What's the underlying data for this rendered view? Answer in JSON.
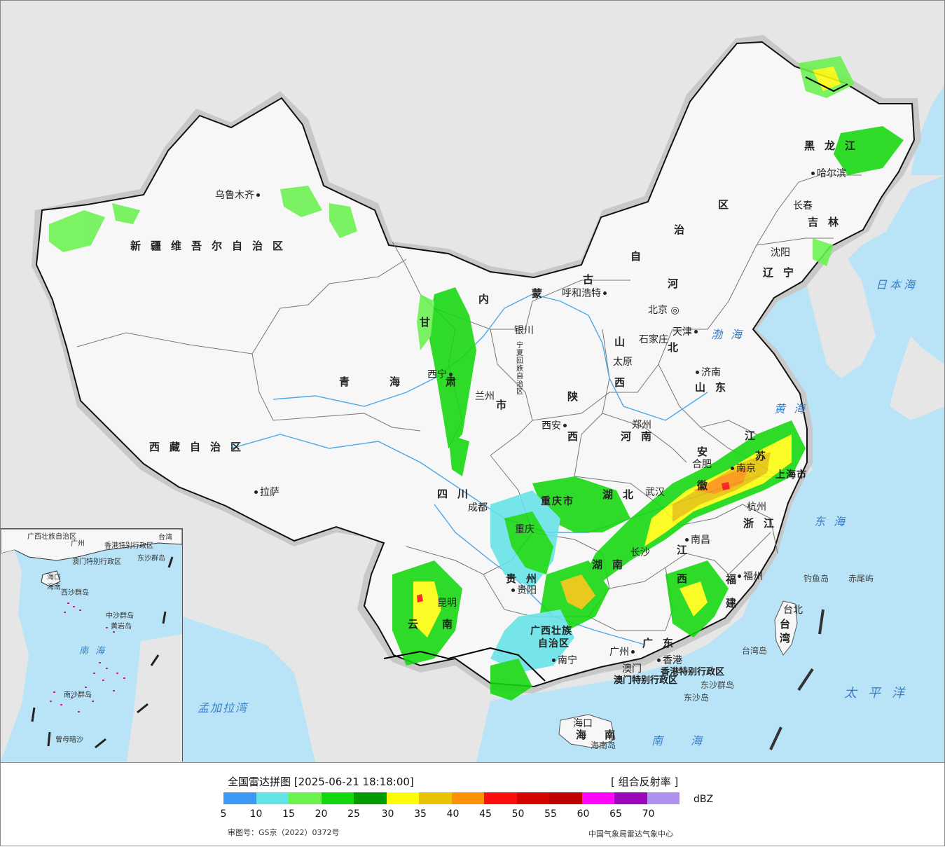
{
  "map": {
    "provinces": [
      {
        "id": "xinjiang",
        "text": "新疆维吾尔自治区"
      },
      {
        "id": "xizang",
        "text": "西藏自治区"
      },
      {
        "id": "qinghai-1",
        "text": "青"
      },
      {
        "id": "qinghai-2",
        "text": "海"
      },
      {
        "id": "gansu-1",
        "text": "甘"
      },
      {
        "id": "gansu-2",
        "text": "肃"
      },
      {
        "id": "neimenggu-1",
        "text": "内"
      },
      {
        "id": "neimenggu-2",
        "text": "蒙"
      },
      {
        "id": "neimenggu-3",
        "text": "古"
      },
      {
        "id": "neimenggu-4",
        "text": "自"
      },
      {
        "id": "neimenggu-5",
        "text": "治"
      },
      {
        "id": "neimenggu-6",
        "text": "区"
      },
      {
        "id": "heilongjiang",
        "text": "黑龙江"
      },
      {
        "id": "jilin",
        "text": "吉林"
      },
      {
        "id": "liaoning",
        "text": "辽宁"
      },
      {
        "id": "hebei-1",
        "text": "河"
      },
      {
        "id": "hebei-2",
        "text": "北"
      },
      {
        "id": "shanxi-1",
        "text": "山"
      },
      {
        "id": "shanxi-2",
        "text": "西"
      },
      {
        "id": "shandong",
        "text": "山东"
      },
      {
        "id": "henan",
        "text": "河南"
      },
      {
        "id": "shaanxi-1",
        "text": "陕"
      },
      {
        "id": "shaanxi-2",
        "text": "西"
      },
      {
        "id": "sichuan",
        "text": "四川"
      },
      {
        "id": "chongqing",
        "text": "重庆市"
      },
      {
        "id": "hubei",
        "text": "湖北"
      },
      {
        "id": "hunan",
        "text": "湖南"
      },
      {
        "id": "anhui-1",
        "text": "安"
      },
      {
        "id": "anhui-2",
        "text": "徽"
      },
      {
        "id": "jiangsu-1",
        "text": "江"
      },
      {
        "id": "jiangsu-2",
        "text": "苏"
      },
      {
        "id": "shanghai",
        "text": "上海市"
      },
      {
        "id": "zhejiang",
        "text": "浙江"
      },
      {
        "id": "jiangxi-1",
        "text": "江"
      },
      {
        "id": "jiangxi-2",
        "text": "西"
      },
      {
        "id": "fujian-1",
        "text": "福"
      },
      {
        "id": "fujian-2",
        "text": "建"
      },
      {
        "id": "guizhou",
        "text": "贵州"
      },
      {
        "id": "yunnan",
        "text": "云南"
      },
      {
        "id": "guangxi-1",
        "text": "广西壮族"
      },
      {
        "id": "guangxi-2",
        "text": "自治区"
      },
      {
        "id": "guangdong",
        "text": "广东"
      },
      {
        "id": "hainan",
        "text": "海南"
      },
      {
        "id": "taiwan-1",
        "text": "台"
      },
      {
        "id": "taiwan-2",
        "text": "湾"
      },
      {
        "id": "ningxia",
        "text": "宁夏回族自治区"
      },
      {
        "id": "gansu-shi",
        "text": "市"
      },
      {
        "id": "hk",
        "text": "香港特别行政区"
      },
      {
        "id": "macao",
        "text": "澳门特别行政区"
      }
    ],
    "cities": [
      {
        "id": "urumqi",
        "text": "乌鲁木齐"
      },
      {
        "id": "lhasa",
        "text": "拉萨"
      },
      {
        "id": "xining",
        "text": "西宁"
      },
      {
        "id": "lanzhou",
        "text": "兰州"
      },
      {
        "id": "yinchuan",
        "text": "银川"
      },
      {
        "id": "hohhot",
        "text": "呼和浩特"
      },
      {
        "id": "beijing",
        "text": "北京"
      },
      {
        "id": "tianjin",
        "text": "天津"
      },
      {
        "id": "shijiazhuang",
        "text": "石家庄"
      },
      {
        "id": "taiyuan",
        "text": "太原"
      },
      {
        "id": "jinan",
        "text": "济南"
      },
      {
        "id": "zhengzhou",
        "text": "郑州"
      },
      {
        "id": "xian",
        "text": "西安"
      },
      {
        "id": "chengdu",
        "text": "成都"
      },
      {
        "id": "chongqing-c",
        "text": "重庆"
      },
      {
        "id": "wuhan",
        "text": "武汉"
      },
      {
        "id": "hefei",
        "text": "合肥"
      },
      {
        "id": "nanjing",
        "text": "南京"
      },
      {
        "id": "hangzhou",
        "text": "杭州"
      },
      {
        "id": "nanchang",
        "text": "南昌"
      },
      {
        "id": "changsha",
        "text": "长沙"
      },
      {
        "id": "fuzhou",
        "text": "福州"
      },
      {
        "id": "guiyang",
        "text": "贵阳"
      },
      {
        "id": "kunming",
        "text": "昆明"
      },
      {
        "id": "nanning",
        "text": "南宁"
      },
      {
        "id": "guangzhou",
        "text": "广州"
      },
      {
        "id": "hongkong",
        "text": "香港"
      },
      {
        "id": "macau",
        "text": "澳门"
      },
      {
        "id": "haikou",
        "text": "海口"
      },
      {
        "id": "taipei",
        "text": "台北"
      },
      {
        "id": "shenyang",
        "text": "沈阳"
      },
      {
        "id": "changchun",
        "text": "长春"
      },
      {
        "id": "harbin",
        "text": "哈尔滨"
      }
    ],
    "seas": [
      {
        "id": "bohai",
        "text": "渤海"
      },
      {
        "id": "huanghai",
        "text": "黄海"
      },
      {
        "id": "donghai",
        "text": "东海"
      },
      {
        "id": "nanhai",
        "text": "南海"
      },
      {
        "id": "riben",
        "text": "日本海"
      },
      {
        "id": "taipingyang",
        "text": "太平洋"
      },
      {
        "id": "mengjiala",
        "text": "孟加拉湾"
      }
    ],
    "islands": [
      {
        "id": "diaoyu",
        "text": "钓鱼岛"
      },
      {
        "id": "chiwei",
        "text": "赤尾屿"
      },
      {
        "id": "taiwan-island",
        "text": "台湾岛"
      },
      {
        "id": "dongsha-qundao",
        "text": "东沙群岛"
      },
      {
        "id": "dongsha-dao",
        "text": "东沙岛"
      },
      {
        "id": "hainan-dao",
        "text": "海南岛"
      }
    ],
    "inset": {
      "labels": [
        {
          "id": "in-guangxi",
          "text": "广西壮族自治区"
        },
        {
          "id": "in-guangzhou",
          "text": "广州"
        },
        {
          "id": "in-hk",
          "text": "香港特别行政区"
        },
        {
          "id": "in-macao",
          "text": "澳门特别行政区"
        },
        {
          "id": "in-taiwan",
          "text": "台湾"
        },
        {
          "id": "in-dongsha",
          "text": "东沙群岛"
        },
        {
          "id": "in-haikou",
          "text": "海口"
        },
        {
          "id": "in-hainan",
          "text": "海南"
        },
        {
          "id": "in-xisha",
          "text": "西沙群岛"
        },
        {
          "id": "in-zhongsha",
          "text": "中沙群岛"
        },
        {
          "id": "in-huangyan",
          "text": "黄岩岛"
        },
        {
          "id": "in-nansha",
          "text": "南沙群岛"
        },
        {
          "id": "in-zengmu",
          "text": "曾母暗沙"
        }
      ],
      "sea_text": "南海"
    }
  },
  "legend": {
    "title": "全国雷达拼图 [2025-06-21 18:18:00]",
    "product": "[ 组合反射率 ]",
    "unit": "dBZ",
    "colors": [
      "#3d98f5",
      "#64e3e8",
      "#6bf24f",
      "#14d80d",
      "#039a02",
      "#fcfc0a",
      "#e6c402",
      "#fd9106",
      "#fd0e0e",
      "#d60202",
      "#c00000",
      "#fd08fd",
      "#9b07ba",
      "#ae91ef"
    ],
    "ticks": [
      "5",
      "10",
      "15",
      "20",
      "25",
      "30",
      "35",
      "40",
      "45",
      "50",
      "55",
      "60",
      "65",
      "70"
    ],
    "approval": "审图号：GS京（2022）0372号",
    "source": "中国气象局雷达气象中心"
  }
}
